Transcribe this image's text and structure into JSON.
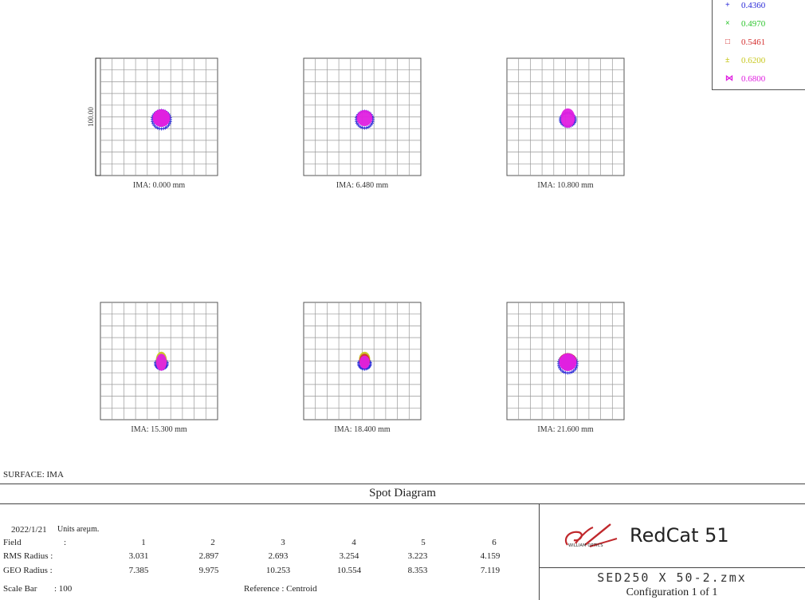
{
  "chart_data": {
    "type": "scatter",
    "title": "Spot Diagram",
    "surface_label": "SURFACE: IMA",
    "scale_bar_label": "100.00",
    "legend": [
      {
        "label": "0.4360",
        "color": "#2a2ad8",
        "marker": "+"
      },
      {
        "label": "0.4970",
        "color": "#2cc42c",
        "marker": "×"
      },
      {
        "label": "0.5461",
        "color": "#d43030",
        "marker": "□"
      },
      {
        "label": "0.6200",
        "color": "#c8c820",
        "marker": "±"
      },
      {
        "label": "0.6800",
        "color": "#e020e0",
        "marker": "⋈"
      }
    ],
    "fields": [
      {
        "label": "IMA: 0.000 mm"
      },
      {
        "label": "IMA: 6.480 mm"
      },
      {
        "label": "IMA: 10.800 mm"
      },
      {
        "label": "IMA: 15.300 mm"
      },
      {
        "label": "IMA: 18.400 mm"
      },
      {
        "label": "IMA: 21.600 mm"
      }
    ]
  },
  "info": {
    "date": "2022/1/21",
    "units": "Units areµm.",
    "field_label": "Field",
    "field_colon": ":",
    "field_numbers": [
      "1",
      "2",
      "3",
      "4",
      "5",
      "6"
    ],
    "rms_label": "RMS Radius :",
    "rms_values": [
      "3.031",
      "2.897",
      "2.693",
      "3.254",
      "3.223",
      "4.159"
    ],
    "geo_label": "GEO Radius :",
    "geo_values": [
      "7.385",
      "9.975",
      "10.253",
      "10.554",
      "8.353",
      "7.119"
    ],
    "scale_label": "Scale Bar",
    "scale_value": ": 100",
    "reference": "Reference   :  Centroid"
  },
  "branding": {
    "logo_text": "RedCat 51",
    "logo_sub": "WILLIAM OPTICS",
    "filename": "SED250 X 50-2.zmx",
    "configuration": "Configuration 1 of 1"
  }
}
